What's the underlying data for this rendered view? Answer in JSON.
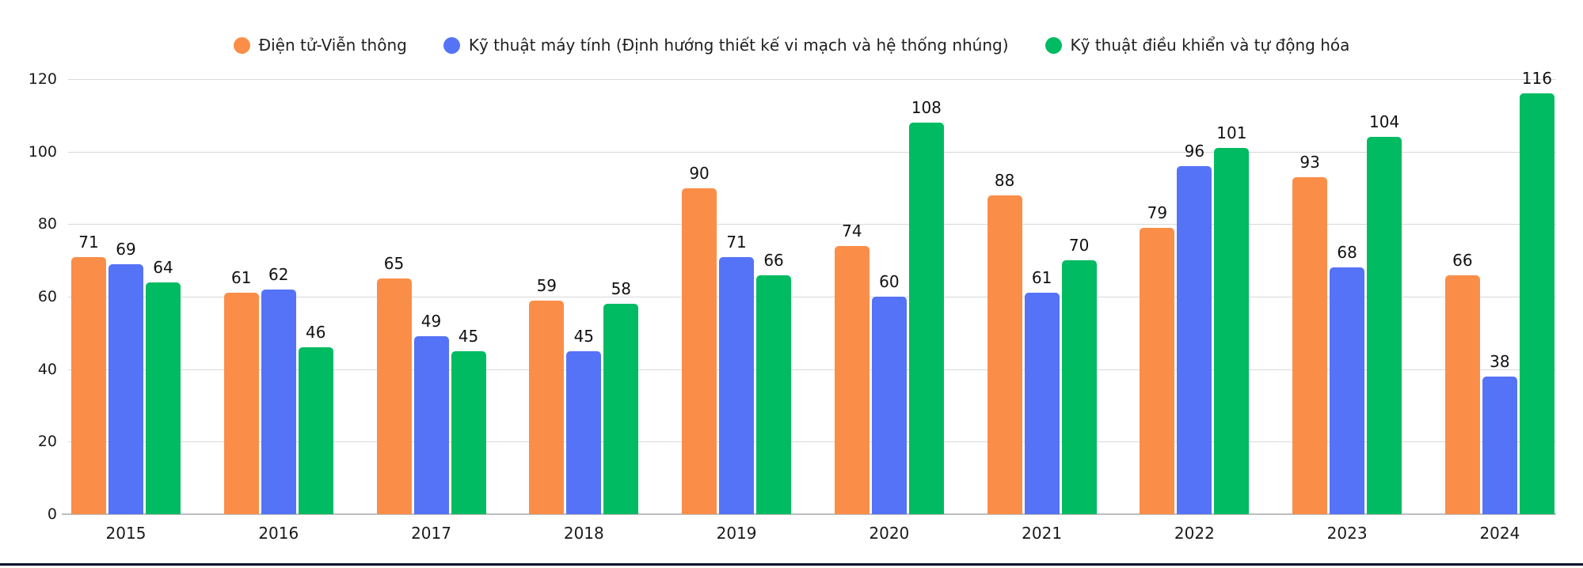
{
  "chart_data": {
    "type": "bar",
    "title": "",
    "categories": [
      "2015",
      "2016",
      "2017",
      "2018",
      "2019",
      "2020",
      "2021",
      "2022",
      "2023",
      "2024"
    ],
    "series": [
      {
        "name": "Điện tử-Viễn thông",
        "color": "#FA8E49",
        "values": [
          71,
          61,
          65,
          59,
          90,
          74,
          88,
          79,
          93,
          66
        ]
      },
      {
        "name": "Kỹ thuật máy tính (Định hướng thiết kế vi mạch và hệ thống nhúng)",
        "color": "#5573F7",
        "values": [
          69,
          62,
          49,
          45,
          71,
          60,
          61,
          96,
          68,
          38
        ]
      },
      {
        "name": "Kỹ thuật điều khiển và tự động hóa",
        "color": "#00BB62",
        "values": [
          64,
          46,
          45,
          58,
          66,
          108,
          70,
          101,
          104,
          116
        ]
      }
    ],
    "xlabel": "",
    "ylabel": "",
    "ylim": [
      0,
      120
    ],
    "yticks": [
      0,
      20,
      40,
      60,
      80,
      100,
      120
    ],
    "grid": true,
    "legend_position": "top",
    "value_labels": true
  },
  "colors": {
    "gridline": "#d9d9d9",
    "axis_line": "#bdbdbd",
    "tick_text": "#1a1a1a",
    "value_text": "#111111",
    "bottom_border": "#0d0d2e"
  }
}
